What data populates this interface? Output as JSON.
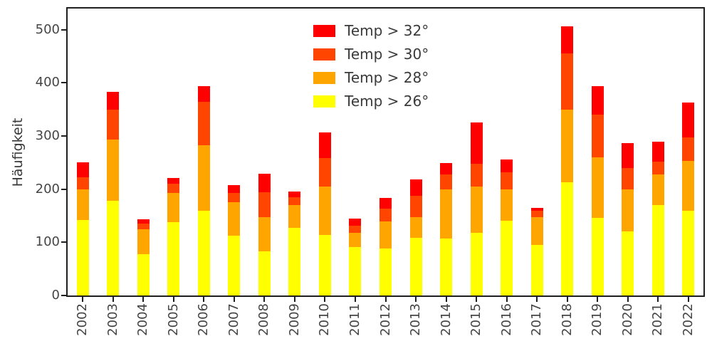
{
  "style": {
    "background": "#ffffff",
    "spine_color": "#1f1f1f",
    "tick_label_color": "#454545",
    "axis_label_color": "#3a3a3a",
    "legend_text_color": "#3a3a3a"
  },
  "chart_data": {
    "type": "bar",
    "stacked": true,
    "title": "",
    "xlabel": "",
    "ylabel": "Häufigkeit",
    "grid": false,
    "ylim": [
      0,
      540
    ],
    "yticks": [
      0,
      100,
      200,
      300,
      400,
      500
    ],
    "categories": [
      "2002",
      "2003",
      "2004",
      "2005",
      "2006",
      "2007",
      "2008",
      "2009",
      "2010",
      "2011",
      "2012",
      "2013",
      "2014",
      "2015",
      "2016",
      "2017",
      "2018",
      "2019",
      "2020",
      "2021",
      "2022"
    ],
    "series": [
      {
        "name": "Temp > 26°",
        "color": "#ffff00",
        "values": [
          142,
          178,
          78,
          138,
          160,
          113,
          83,
          127,
          114,
          91,
          88,
          108,
          107,
          118,
          141,
          95,
          213,
          146,
          120,
          170,
          160
        ]
      },
      {
        "name": "Temp > 28°",
        "color": "#ffa500",
        "values": [
          58,
          115,
          47,
          55,
          123,
          62,
          65,
          43,
          91,
          27,
          52,
          40,
          93,
          87,
          59,
          53,
          137,
          114,
          80,
          58,
          93
        ]
      },
      {
        "name": "Temp > 30°",
        "color": "#ff4500",
        "values": [
          22,
          57,
          10,
          17,
          82,
          18,
          47,
          15,
          53,
          14,
          23,
          40,
          28,
          43,
          32,
          12,
          105,
          80,
          40,
          24,
          44
        ]
      },
      {
        "name": "Temp > 32°",
        "color": "#ff0000",
        "values": [
          28,
          33,
          8,
          11,
          29,
          15,
          34,
          11,
          49,
          13,
          21,
          31,
          21,
          78,
          24,
          5,
          52,
          54,
          47,
          37,
          66
        ]
      }
    ],
    "legend": {
      "position": "upper center",
      "items": [
        {
          "label": "Temp > 32°",
          "color": "#ff0000"
        },
        {
          "label": "Temp > 30°",
          "color": "#ff4500"
        },
        {
          "label": "Temp > 28°",
          "color": "#ffa500"
        },
        {
          "label": "Temp > 26°",
          "color": "#ffff00"
        }
      ]
    }
  }
}
